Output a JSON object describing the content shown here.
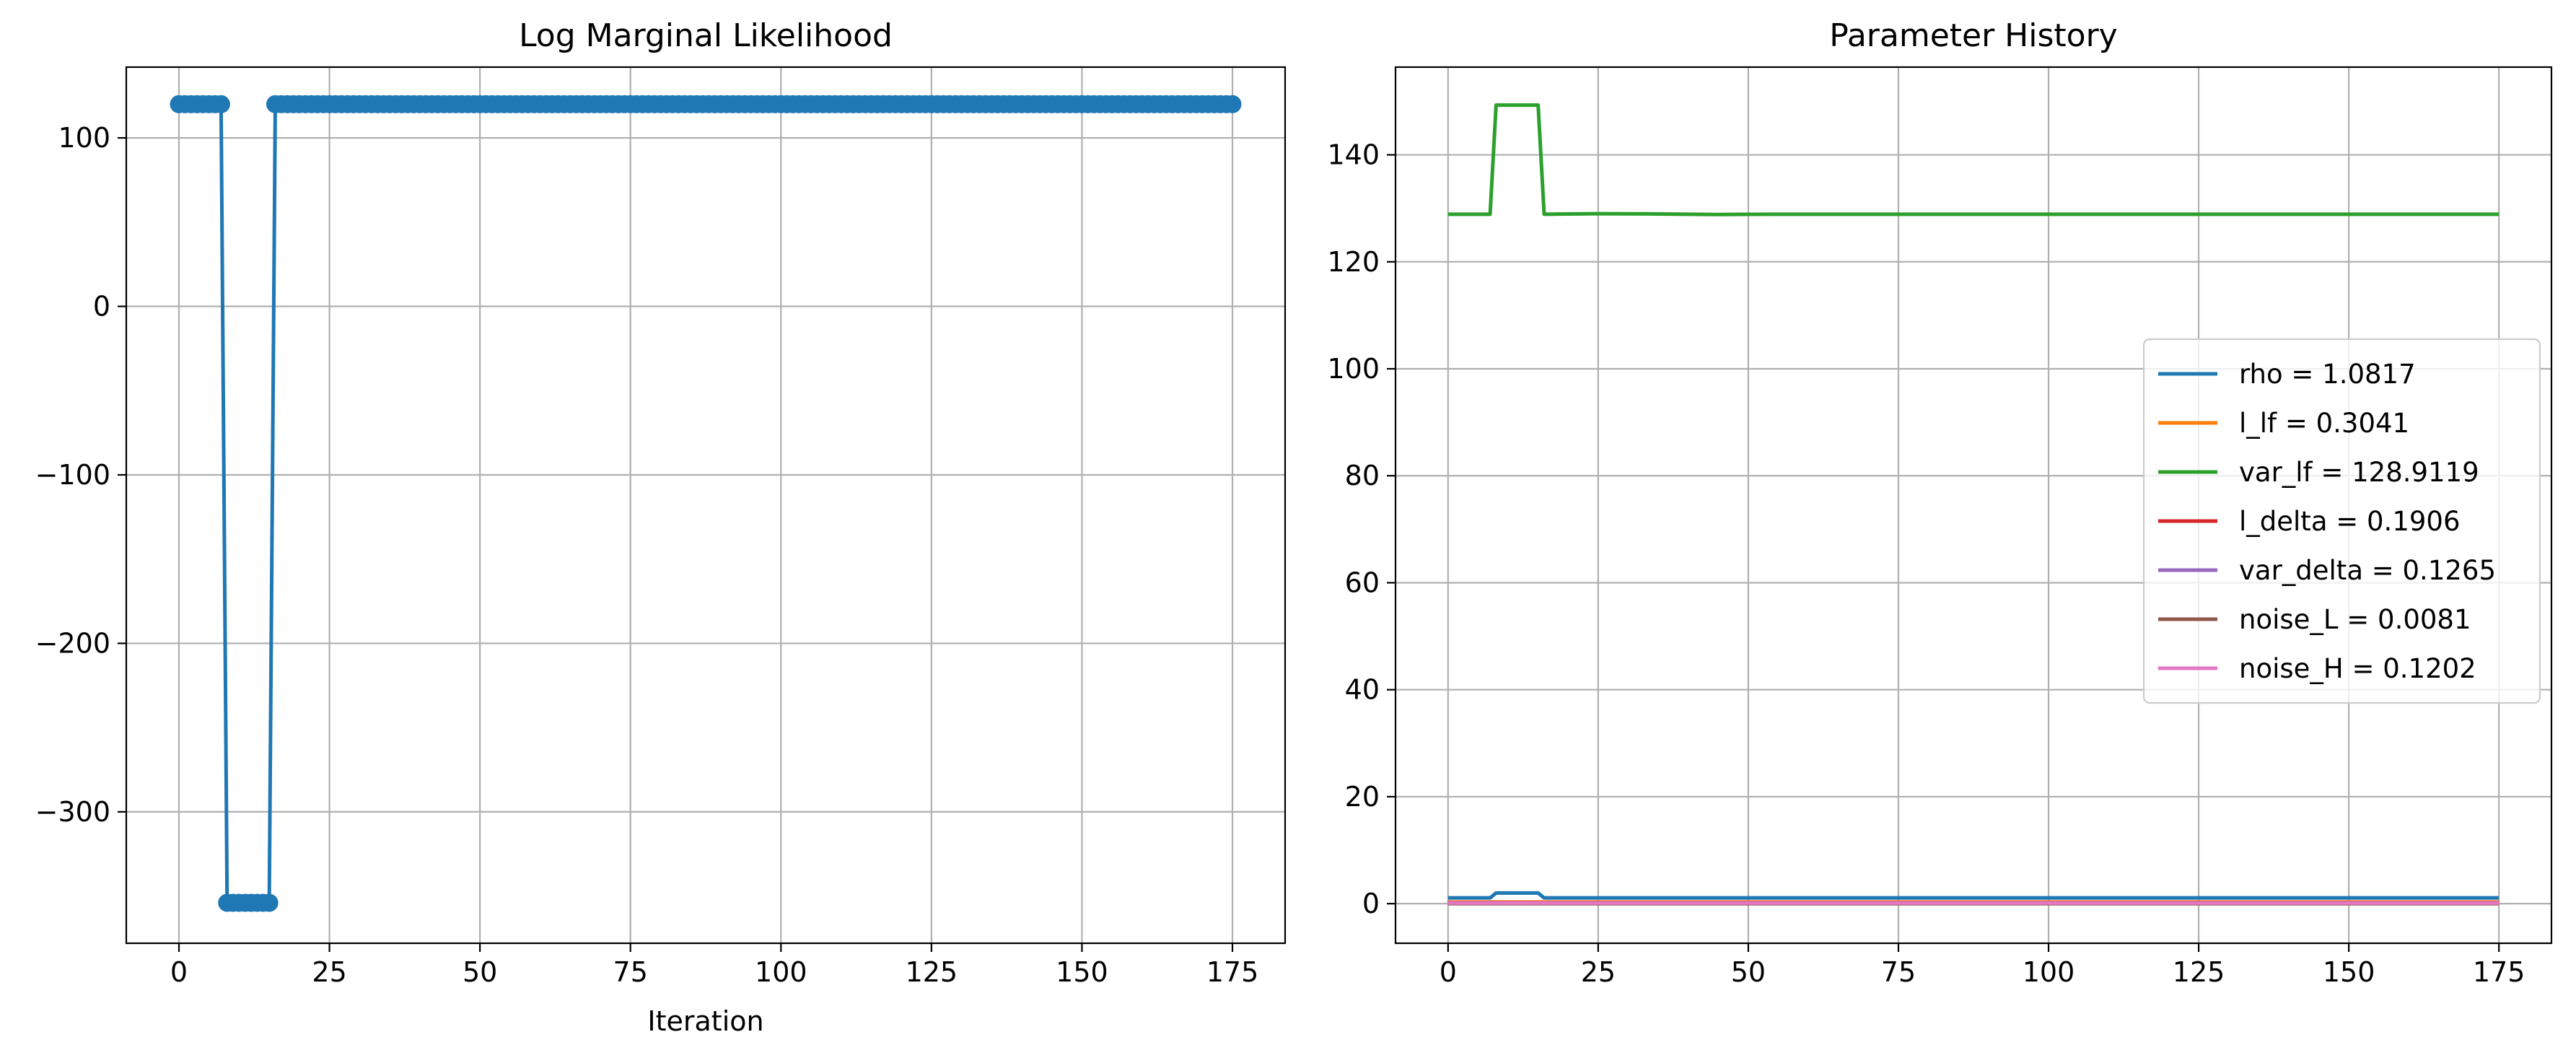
{
  "chart_data": [
    {
      "type": "line",
      "title": "Log Marginal Likelihood",
      "xlabel": "Iteration",
      "ylabel": "",
      "xlim": [
        -8.75,
        183.75
      ],
      "ylim": [
        -378,
        142
      ],
      "xticks": [
        0,
        25,
        50,
        75,
        100,
        125,
        150,
        175
      ],
      "yticks": [
        -300,
        -200,
        -100,
        0,
        100
      ],
      "ytick_labels": [
        "−300",
        "−200",
        "−100",
        "0",
        "100"
      ],
      "grid": true,
      "markers": true,
      "series": [
        {
          "name": "log marginal likelihood",
          "color": "#1f77b4",
          "segments": [
            {
              "x_start": 0,
              "x_end": 7,
              "value": 120
            },
            {
              "x_start": 8,
              "x_end": 15,
              "value": -354
            },
            {
              "x_start": 16,
              "x_end": 175,
              "value": 120
            }
          ]
        }
      ]
    },
    {
      "type": "line",
      "title": "Parameter History",
      "xlabel": "",
      "ylabel": "",
      "xlim": [
        -8.75,
        183.75
      ],
      "ylim": [
        -7.4,
        156.4
      ],
      "xticks": [
        0,
        25,
        50,
        75,
        100,
        125,
        150,
        175
      ],
      "yticks": [
        0,
        20,
        40,
        60,
        80,
        100,
        120,
        140
      ],
      "grid": true,
      "legend_position": "center-right",
      "series": [
        {
          "name": "rho = 1.0817",
          "color": "#1f77b4",
          "points": [
            [
              0,
              1.08
            ],
            [
              7,
              1.08
            ],
            [
              8,
              2.0
            ],
            [
              15,
              2.0
            ],
            [
              16,
              1.08
            ],
            [
              175,
              1.08
            ]
          ]
        },
        {
          "name": "l_lf = 0.3041",
          "color": "#ff7f0e",
          "points": [
            [
              0,
              0.3
            ],
            [
              175,
              0.3
            ]
          ]
        },
        {
          "name": "var_lf = 128.9119",
          "color": "#2ca02c",
          "points": [
            [
              0,
              128.9
            ],
            [
              7,
              128.9
            ],
            [
              8,
              149.3
            ],
            [
              15,
              149.3
            ],
            [
              16,
              128.9
            ],
            [
              25,
              129.0
            ],
            [
              35,
              128.95
            ],
            [
              45,
              128.85
            ],
            [
              55,
              128.9
            ],
            [
              175,
              128.9
            ]
          ]
        },
        {
          "name": "l_delta = 0.1906",
          "color": "#d62728",
          "points": [
            [
              0,
              0.19
            ],
            [
              175,
              0.19
            ]
          ]
        },
        {
          "name": "var_delta = 0.1265",
          "color": "#9467bd",
          "points": [
            [
              0,
              0.13
            ],
            [
              175,
              0.13
            ]
          ]
        },
        {
          "name": "noise_L = 0.0081",
          "color": "#8c564b",
          "points": [
            [
              0,
              0.01
            ],
            [
              175,
              0.01
            ]
          ]
        },
        {
          "name": "noise_H = 0.1202",
          "color": "#e377c2",
          "points": [
            [
              0,
              0.12
            ],
            [
              175,
              0.12
            ]
          ]
        }
      ]
    }
  ]
}
